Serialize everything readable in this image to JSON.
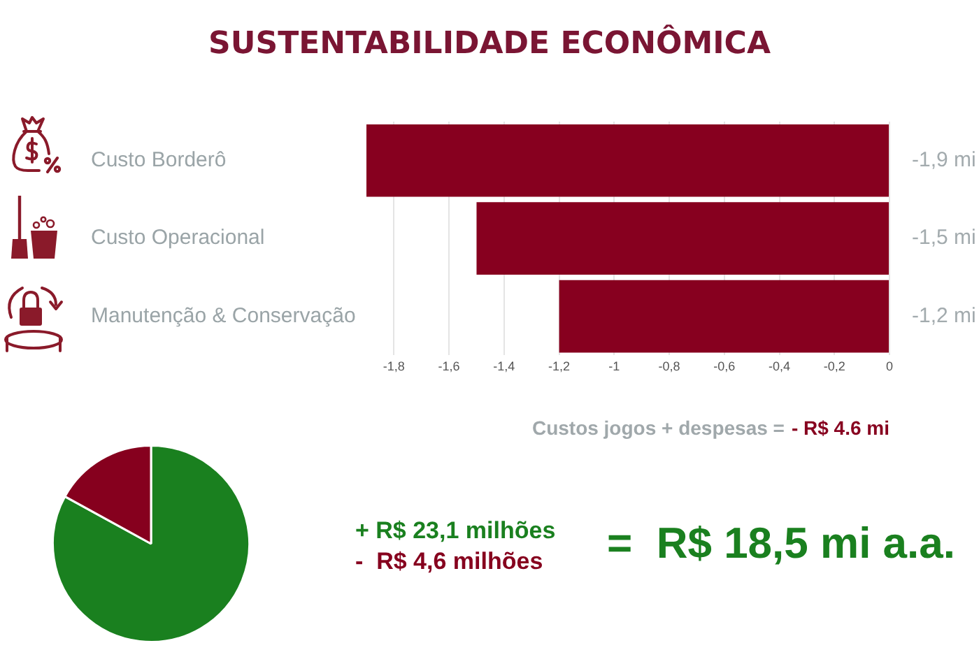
{
  "chart_data": [
    {
      "type": "bar",
      "title": "SUSTENTABILIDADE ECONÔMICA",
      "orientation": "horizontal",
      "categories": [
        "Custo Borderô",
        "Custo Operacional",
        "Manutenção & Conservação"
      ],
      "values": [
        -1.9,
        -1.5,
        -1.2
      ],
      "color": "#87001f",
      "value_labels": [
        "-1,9 mi",
        "-1,5 mi",
        "-1,2 mi"
      ],
      "xlim": [
        -1.9,
        0
      ],
      "xticks": [
        {
          "value": -1.8,
          "label": "-1,8"
        },
        {
          "value": -1.6,
          "label": "-1,6"
        },
        {
          "value": -1.4,
          "label": "-1,4"
        },
        {
          "value": -1.2,
          "label": "-1,2"
        },
        -1,
        {
          "value": -0.8,
          "label": "-0,8"
        },
        {
          "value": -0.6,
          "label": "-0,6"
        },
        {
          "value": -0.4,
          "label": "-0,4"
        },
        {
          "value": -0.2,
          "label": "-0,2"
        },
        0
      ],
      "grid": "x",
      "annotations": [
        "Custos jogos + despesas =",
        "- R$ 4.6 mi"
      ]
    },
    {
      "type": "pie",
      "categories": [
        null,
        null
      ],
      "values": [
        83,
        17
      ],
      "colors": [
        "#1a801f",
        "#86001e"
      ],
      "annotations": [
        "+ R$ 23,1 milhões",
        "-  R$ 4,6 milhões",
        "=  R$ 18,5 mi a.a."
      ]
    }
  ]
}
